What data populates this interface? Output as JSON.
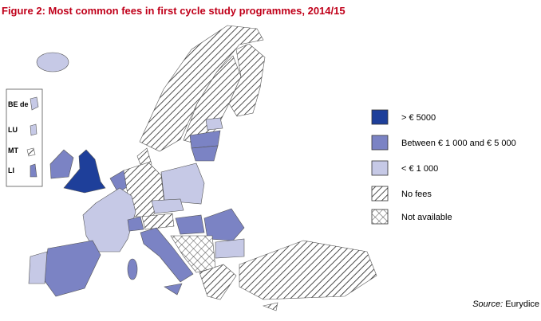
{
  "title": "Figure 2: Most common fees in first cycle study programmes, 2014/15",
  "inset": {
    "labels": [
      "BE de",
      "LU",
      "MT",
      "LI"
    ]
  },
  "legend": {
    "items": [
      {
        "label": "> € 5000",
        "color": "#1e3f9a"
      },
      {
        "label": "Between € 1 000 and € 5 000",
        "color": "#7b83c4"
      },
      {
        "label": "< € 1 000",
        "color": "#c6c9e6"
      },
      {
        "label": "No fees",
        "pattern": "diagonal"
      },
      {
        "label": "Not available",
        "pattern": "cross"
      }
    ]
  },
  "source": {
    "label": "Source:",
    "text": "Eurydice"
  }
}
